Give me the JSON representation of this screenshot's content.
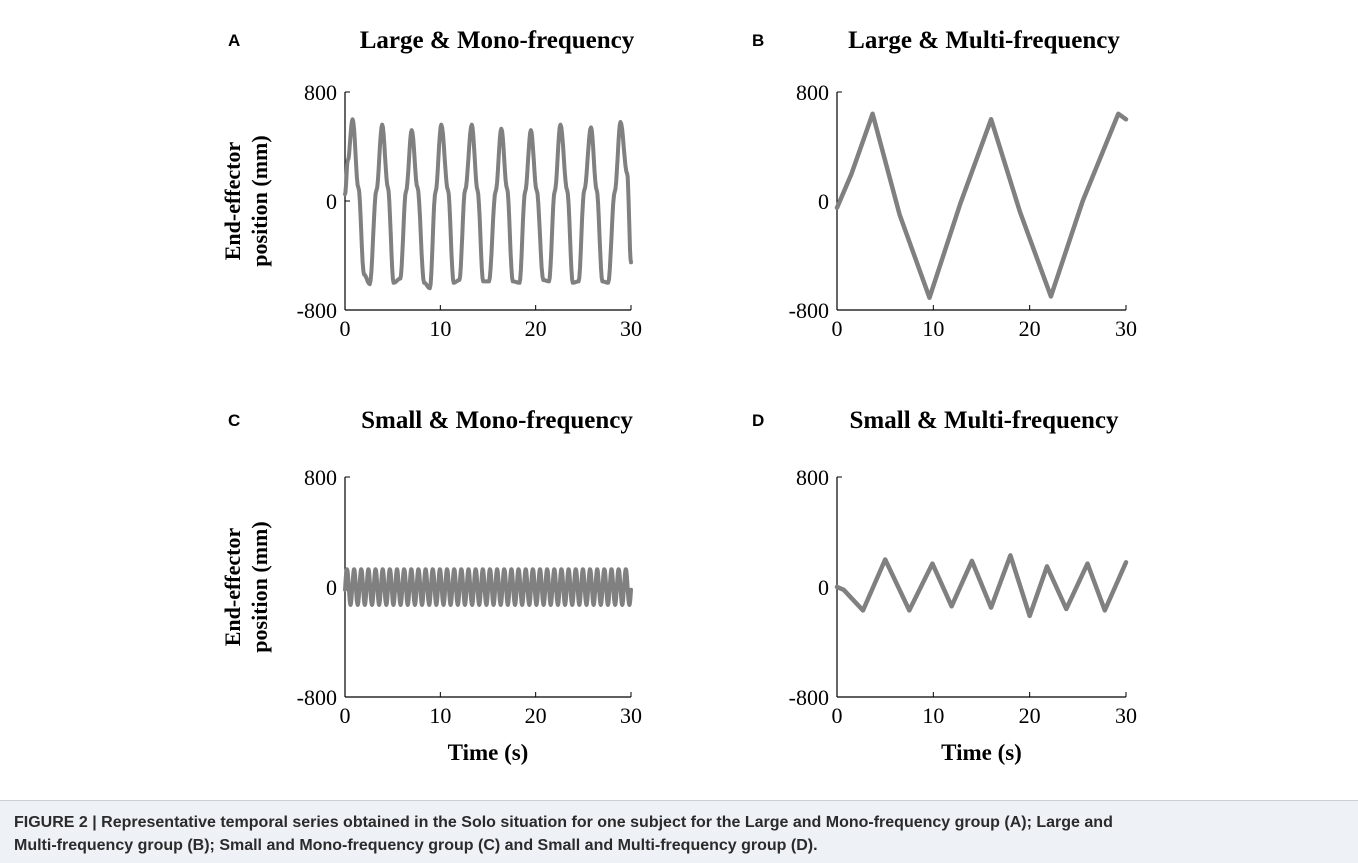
{
  "figure": {
    "caption_lines": [
      "FIGURE 2 | Representative temporal series obtained in the Solo situation for one subject for the Large and Mono-frequency group (A); Large and",
      "Multi-frequency group (B); Small and Mono-frequency group (C) and Small and Multi-frequency group (D)."
    ],
    "line_color": "#808080"
  },
  "chart_data": [
    {
      "panel": "A",
      "type": "line",
      "title": "Large & Mono-frequency",
      "xlabel": "",
      "ylabel": [
        "End-effector",
        "position (mm)"
      ],
      "xlim": [
        0,
        30
      ],
      "ylim": [
        -800,
        800
      ],
      "xticks": [
        "0",
        "10",
        "20",
        "30"
      ],
      "yticks": [
        "800",
        "0",
        "-800"
      ],
      "grid": false,
      "series": [
        {
          "x": [
            0,
            0.3,
            0.8,
            1.4,
            2.0,
            2.6,
            3.3,
            3.9,
            4.5,
            5.1,
            5.8,
            6.4,
            7.0,
            7.6,
            8.3,
            8.9,
            9.5,
            10.1,
            10.8,
            11.4,
            12.0,
            12.6,
            13.3,
            13.9,
            14.5,
            15.1,
            15.8,
            16.4,
            17.0,
            17.6,
            18.3,
            18.9,
            19.5,
            20.1,
            20.8,
            21.4,
            22.0,
            22.6,
            23.3,
            23.9,
            24.5,
            25.1,
            25.8,
            26.4,
            27.0,
            27.6,
            28.3,
            28.9,
            29.6,
            30.0
          ],
          "values": [
            50,
            300,
            600,
            100,
            -540,
            -610,
            80,
            560,
            100,
            -600,
            -570,
            70,
            520,
            100,
            -600,
            -640,
            70,
            560,
            80,
            -600,
            -580,
            80,
            560,
            80,
            -590,
            -590,
            70,
            530,
            90,
            -590,
            -600,
            70,
            520,
            80,
            -580,
            -590,
            70,
            560,
            80,
            -600,
            -590,
            80,
            540,
            80,
            -590,
            -600,
            70,
            580,
            200,
            -450
          ]
        }
      ]
    },
    {
      "panel": "B",
      "type": "line",
      "title": "Large & Multi-frequency",
      "xlabel": "",
      "ylabel": "",
      "xlim": [
        0,
        30
      ],
      "ylim": [
        -800,
        800
      ],
      "xticks": [
        "0",
        "10",
        "20",
        "30"
      ],
      "yticks": [
        "800",
        "0",
        "-800"
      ],
      "grid": false,
      "series": [
        {
          "x": [
            0,
            1.5,
            3.7,
            6.5,
            9.6,
            12.8,
            16.0,
            19.0,
            22.2,
            25.5,
            29.2,
            30.0
          ],
          "values": [
            -50,
            200,
            640,
            -100,
            -710,
            -20,
            600,
            -80,
            -700,
            0,
            640,
            600
          ]
        }
      ]
    },
    {
      "panel": "C",
      "type": "line",
      "title": "Small & Mono-frequency",
      "xlabel": "Time (s)",
      "ylabel": [
        "End-effector",
        "position (mm)"
      ],
      "xlim": [
        0,
        30
      ],
      "ylim": [
        -800,
        800
      ],
      "xticks": [
        "0",
        "10",
        "20",
        "30"
      ],
      "yticks": [
        "800",
        "0",
        "-800"
      ],
      "grid": false,
      "series": [
        {
          "amplitude": 130,
          "period_s": 0.75,
          "x_start": 0,
          "x_end": 30,
          "start_value": -20
        }
      ]
    },
    {
      "panel": "D",
      "type": "line",
      "title": "Small & Multi-frequency",
      "xlabel": "Time (s)",
      "ylabel": "",
      "xlim": [
        0,
        30
      ],
      "ylim": [
        -800,
        800
      ],
      "xticks": [
        "0",
        "10",
        "20",
        "30"
      ],
      "yticks": [
        "800",
        "0",
        "-800"
      ],
      "grid": false,
      "series": [
        {
          "x": [
            0,
            0.7,
            2.7,
            5.0,
            7.5,
            9.9,
            11.9,
            14.0,
            16.0,
            18.0,
            20.0,
            21.8,
            23.8,
            26.0,
            27.8,
            30.0
          ],
          "values": [
            0,
            -20,
            -170,
            200,
            -170,
            170,
            -140,
            190,
            -150,
            230,
            -210,
            150,
            -160,
            170,
            -170,
            180
          ]
        }
      ]
    }
  ]
}
